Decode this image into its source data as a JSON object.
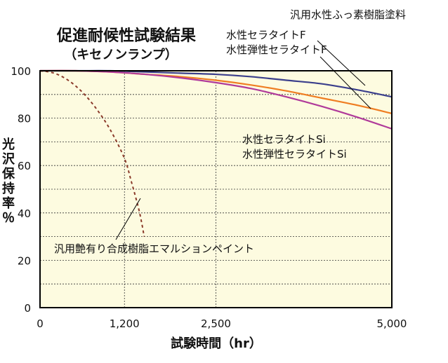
{
  "chart_data": {
    "type": "line",
    "title": "促進耐候性試験結果",
    "subtitle": "（キセノンランプ）",
    "xlabel": "試験時間（hr）",
    "ylabel": "光沢保持率％",
    "xlim": [
      0,
      5000
    ],
    "ylim": [
      0,
      100
    ],
    "x_ticks": [
      0,
      1200,
      2500,
      5000
    ],
    "x_tick_labels": [
      "0",
      "1,200",
      "2,500",
      "5,000"
    ],
    "y_ticks": [
      0,
      20,
      40,
      60,
      80,
      100
    ],
    "y_tick_labels": [
      "0",
      "20",
      "40",
      "60",
      "80",
      "100"
    ],
    "grid": true,
    "series": [
      {
        "name": "汎用水性ふっ素樹脂塗料",
        "color": "#3b3f8c",
        "dash": "solid",
        "points": [
          [
            0,
            100
          ],
          [
            500,
            100
          ],
          [
            1000,
            100
          ],
          [
            1500,
            99.5
          ],
          [
            2000,
            99
          ],
          [
            2500,
            98.5
          ],
          [
            3000,
            97.5
          ],
          [
            3500,
            96
          ],
          [
            4000,
            94.5
          ],
          [
            4500,
            92
          ],
          [
            5000,
            89
          ]
        ]
      },
      {
        "name": "水性セラタイトF / 水性弾性セラタイトF",
        "color": "#ef7d22",
        "dash": "solid",
        "points": [
          [
            0,
            100
          ],
          [
            500,
            100
          ],
          [
            1000,
            99.5
          ],
          [
            1500,
            98.5
          ],
          [
            2000,
            97.5
          ],
          [
            2500,
            96
          ],
          [
            3000,
            94
          ],
          [
            3500,
            91.5
          ],
          [
            4000,
            88.5
          ],
          [
            4500,
            85.5
          ],
          [
            5000,
            82
          ]
        ]
      },
      {
        "name": "水性セラタイトSi / 水性弾性セラタイトSi",
        "color": "#b03a9a",
        "dash": "solid",
        "points": [
          [
            0,
            100
          ],
          [
            500,
            100
          ],
          [
            1000,
            99.5
          ],
          [
            1500,
            98.5
          ],
          [
            2000,
            97
          ],
          [
            2500,
            95
          ],
          [
            3000,
            92.5
          ],
          [
            3500,
            89
          ],
          [
            4000,
            85
          ],
          [
            4500,
            80.5
          ],
          [
            5000,
            75.5
          ]
        ]
      },
      {
        "name": "汎用艶有り合成樹脂エマルションペイント",
        "color": "#8b3a2a",
        "dash": "dashed",
        "points": [
          [
            0,
            100
          ],
          [
            200,
            99
          ],
          [
            400,
            96
          ],
          [
            600,
            91
          ],
          [
            800,
            84
          ],
          [
            1000,
            75
          ],
          [
            1200,
            63
          ],
          [
            1300,
            53
          ],
          [
            1400,
            42
          ],
          [
            1450,
            35
          ],
          [
            1480,
            30
          ]
        ]
      }
    ],
    "annotations": [
      {
        "lines": [
          "汎用水性ふっ素樹脂塗料"
        ],
        "series": 0
      },
      {
        "lines": [
          "水性セラタイトF",
          "水性弾性セラタイトF"
        ],
        "series": 1
      },
      {
        "lines": [
          "水性セラタイトSi",
          "水性弾性セラタイトSi"
        ],
        "series": 2
      },
      {
        "lines": [
          "汎用艶有り合成樹脂エマルションペイント"
        ],
        "series": 3
      }
    ],
    "colors": {
      "plot_background": "#fdfbe0",
      "frame": "#000000"
    }
  }
}
